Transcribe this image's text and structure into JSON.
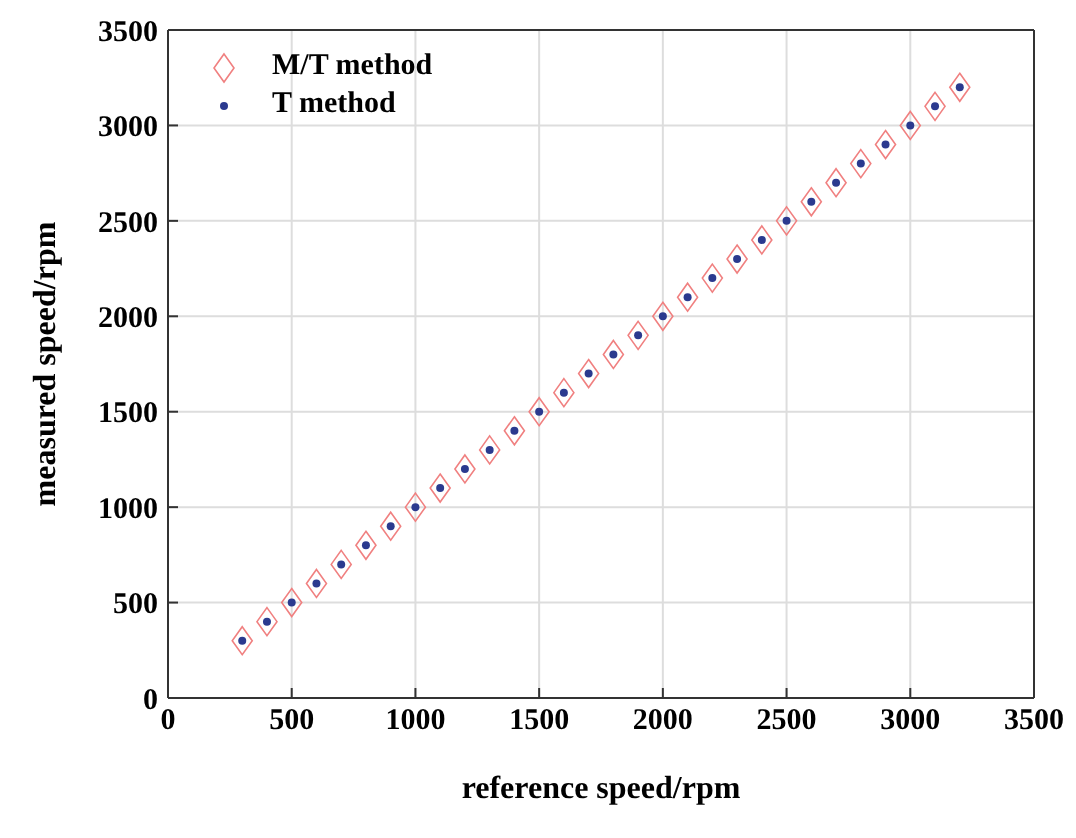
{
  "chart_data": {
    "type": "scatter",
    "xlabel": "reference speed/rpm",
    "ylabel": "measured speed/rpm",
    "x": [
      300,
      400,
      500,
      600,
      700,
      800,
      900,
      1000,
      1100,
      1200,
      1300,
      1400,
      1500,
      1600,
      1700,
      1800,
      1900,
      2000,
      2100,
      2200,
      2300,
      2400,
      2500,
      2600,
      2700,
      2800,
      2900,
      3000,
      3100,
      3200
    ],
    "series": [
      {
        "name": "M/T method",
        "color": "#f08080",
        "marker": "diamond",
        "values": [
          300,
          400,
          500,
          600,
          700,
          800,
          900,
          1000,
          1100,
          1200,
          1300,
          1400,
          1500,
          1600,
          1700,
          1800,
          1900,
          2000,
          2100,
          2200,
          2300,
          2400,
          2500,
          2600,
          2700,
          2800,
          2900,
          3000,
          3100,
          3200
        ]
      },
      {
        "name": "T method",
        "color": "#2b3a8f",
        "marker": "circle",
        "values": [
          300,
          400,
          500,
          600,
          700,
          800,
          900,
          1000,
          1100,
          1200,
          1300,
          1400,
          1500,
          1600,
          1700,
          1800,
          1900,
          2000,
          2100,
          2200,
          2300,
          2400,
          2500,
          2600,
          2700,
          2800,
          2900,
          3000,
          3100,
          3200
        ]
      }
    ],
    "xlim": [
      0,
      3500
    ],
    "xticks": [
      0,
      500,
      1000,
      1500,
      2000,
      2500,
      3000,
      3500
    ],
    "ylim": [
      0,
      3500
    ],
    "yticks": [
      0,
      500,
      1000,
      1500,
      2000,
      2500,
      3000,
      3500
    ],
    "grid": true,
    "legend": "top left"
  }
}
